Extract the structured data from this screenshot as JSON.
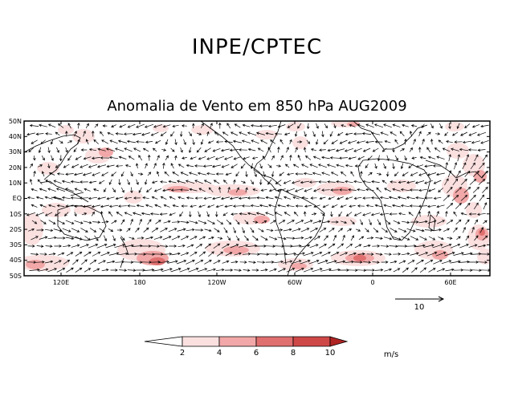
{
  "header": {
    "title": "INPE/CPTEC"
  },
  "map": {
    "title": "Anomalia de Vento em 850 hPa AUG2009",
    "lat_labels": [
      "50N",
      "40N",
      "30N",
      "20N",
      "10N",
      "EQ",
      "10S",
      "20S",
      "30S",
      "40S",
      "50S"
    ],
    "lon_labels": [
      "120E",
      "180",
      "120W",
      "60W",
      "0",
      "60E"
    ],
    "reference_vector": {
      "label": "10",
      "units": "m/s"
    },
    "colorbar": {
      "units": "m/s",
      "ticks": [
        "2",
        "4",
        "6",
        "8",
        "10"
      ],
      "colors": [
        "#ffffff",
        "#fbe0e0",
        "#f2a8a8",
        "#e07070",
        "#cf4848",
        "#b02424"
      ]
    },
    "shading_colors": {
      "light": "#fbe0e0",
      "medium": "#f2a8a8",
      "strong": "#e07070",
      "dark": "#cf4848"
    },
    "arrow_color": "#000000"
  }
}
